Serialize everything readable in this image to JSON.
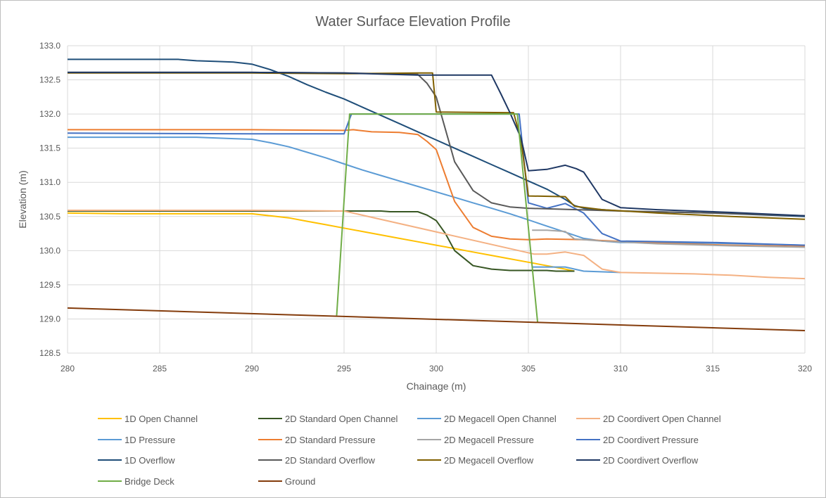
{
  "chart_data": {
    "type": "line",
    "title": "Water Surface Elevation Profile",
    "xlabel": "Chainage (m)",
    "ylabel": "Elevation (m)",
    "xlim": [
      280,
      320
    ],
    "ylim": [
      128.5,
      133.0
    ],
    "x_ticks": [
      280,
      285,
      290,
      295,
      300,
      305,
      310,
      315,
      320
    ],
    "y_ticks": [
      128.5,
      129.0,
      129.5,
      130.0,
      130.5,
      131.0,
      131.5,
      132.0,
      132.5,
      133.0
    ],
    "x_tick_labels": [
      "280",
      "285",
      "290",
      "295",
      "300",
      "305",
      "310",
      "315",
      "320"
    ],
    "y_tick_labels": [
      "128.5",
      "129.0",
      "129.5",
      "130.0",
      "130.5",
      "131.0",
      "131.5",
      "132.0",
      "132.5",
      "133.0"
    ],
    "grid": true,
    "legend_position": "bottom",
    "series": [
      {
        "name": "1D Open Channel",
        "color": "#FFC000",
        "points": [
          [
            280,
            130.55
          ],
          [
            283,
            130.54
          ],
          [
            290,
            130.54
          ],
          [
            291,
            130.51
          ],
          [
            292,
            130.48
          ],
          [
            293,
            130.43
          ],
          [
            294,
            130.38
          ],
          [
            295,
            130.33
          ],
          [
            296,
            130.28
          ],
          [
            297,
            130.23
          ],
          [
            298,
            130.18
          ],
          [
            299,
            130.13
          ],
          [
            300,
            130.08
          ],
          [
            301,
            130.03
          ],
          [
            302,
            129.98
          ],
          [
            303,
            129.93
          ],
          [
            304,
            129.88
          ],
          [
            305,
            129.83
          ],
          [
            306,
            129.78
          ],
          [
            307,
            129.73
          ],
          [
            307.5,
            129.7
          ]
        ]
      },
      {
        "name": "2D Standard Open Channel",
        "color": "#375623",
        "points": [
          [
            280,
            130.58
          ],
          [
            295,
            130.58
          ],
          [
            297,
            130.58
          ],
          [
            297.5,
            130.57
          ],
          [
            299,
            130.57
          ],
          [
            299.5,
            130.52
          ],
          [
            300,
            130.44
          ],
          [
            300.5,
            130.25
          ],
          [
            301,
            130.0
          ],
          [
            302,
            129.78
          ],
          [
            303,
            129.73
          ],
          [
            304,
            129.71
          ],
          [
            306,
            129.71
          ],
          [
            306.5,
            129.7
          ],
          [
            307.5,
            129.7
          ]
        ]
      },
      {
        "name": "2D Megacell Open Channel",
        "color": "#5B9BD5",
        "points": [
          [
            305.2,
            129.76
          ],
          [
            307,
            129.76
          ],
          [
            308,
            129.7
          ],
          [
            310,
            129.68
          ]
        ]
      },
      {
        "name": "2D Coordivert Open Channel",
        "color": "#F4B183",
        "points": [
          [
            280,
            130.59
          ],
          [
            290,
            130.59
          ],
          [
            295,
            130.58
          ],
          [
            305.3,
            129.95
          ],
          [
            306,
            129.95
          ],
          [
            307,
            129.98
          ],
          [
            308,
            129.93
          ],
          [
            309,
            129.73
          ],
          [
            310,
            129.68
          ],
          [
            312,
            129.67
          ],
          [
            314,
            129.66
          ],
          [
            316,
            129.64
          ],
          [
            318,
            129.61
          ],
          [
            320,
            129.59
          ]
        ]
      },
      {
        "name": "1D Pressure",
        "color": "#5B9BD5",
        "points": [
          [
            280,
            131.66
          ],
          [
            287,
            131.66
          ],
          [
            289,
            131.64
          ],
          [
            290,
            131.63
          ],
          [
            291,
            131.58
          ],
          [
            292,
            131.52
          ],
          [
            293,
            131.44
          ],
          [
            294,
            131.36
          ],
          [
            295,
            131.27
          ],
          [
            296,
            131.18
          ],
          [
            297,
            131.1
          ],
          [
            298,
            131.02
          ],
          [
            299,
            130.94
          ],
          [
            300,
            130.86
          ],
          [
            301,
            130.78
          ],
          [
            302,
            130.7
          ],
          [
            303,
            130.62
          ],
          [
            304,
            130.54
          ],
          [
            305,
            130.45
          ],
          [
            306,
            130.36
          ],
          [
            307,
            130.27
          ],
          [
            308,
            130.18
          ],
          [
            309,
            130.14
          ],
          [
            310,
            130.12
          ],
          [
            315,
            130.11
          ],
          [
            320,
            130.08
          ]
        ]
      },
      {
        "name": "2D Standard Pressure",
        "color": "#ED7D31",
        "points": [
          [
            280,
            131.77
          ],
          [
            290,
            131.77
          ],
          [
            295,
            131.76
          ],
          [
            295.5,
            131.77
          ],
          [
            296.5,
            131.74
          ],
          [
            298,
            131.73
          ],
          [
            299,
            131.7
          ],
          [
            299.5,
            131.6
          ],
          [
            300,
            131.48
          ],
          [
            300.5,
            131.1
          ],
          [
            301,
            130.72
          ],
          [
            302,
            130.34
          ],
          [
            303,
            130.21
          ],
          [
            304,
            130.17
          ],
          [
            305,
            130.16
          ],
          [
            306,
            130.17
          ],
          [
            308,
            130.16
          ],
          [
            312,
            130.11
          ],
          [
            316,
            130.08
          ],
          [
            320,
            130.06
          ]
        ]
      },
      {
        "name": "2D Megacell Pressure",
        "color": "#A5A5A5",
        "points": [
          [
            305.2,
            130.3
          ],
          [
            306,
            130.3
          ],
          [
            307,
            130.28
          ],
          [
            307.5,
            130.17
          ],
          [
            309,
            130.14
          ],
          [
            312,
            130.1
          ],
          [
            316,
            130.07
          ],
          [
            320,
            130.05
          ]
        ]
      },
      {
        "name": "2D Coordivert Pressure",
        "color": "#4472C4",
        "points": [
          [
            280,
            131.72
          ],
          [
            290,
            131.71
          ],
          [
            295,
            131.71
          ],
          [
            295.4,
            132.0
          ],
          [
            304.5,
            132.0
          ],
          [
            305,
            130.7
          ],
          [
            306,
            130.62
          ],
          [
            307,
            130.69
          ],
          [
            308,
            130.55
          ],
          [
            309,
            130.25
          ],
          [
            310,
            130.14
          ],
          [
            315,
            130.12
          ],
          [
            320,
            130.08
          ]
        ]
      },
      {
        "name": "1D Overflow",
        "color": "#1F4E79",
        "points": [
          [
            280,
            132.8
          ],
          [
            286,
            132.8
          ],
          [
            287,
            132.78
          ],
          [
            288,
            132.77
          ],
          [
            289,
            132.76
          ],
          [
            290,
            132.73
          ],
          [
            291,
            132.65
          ],
          [
            292,
            132.55
          ],
          [
            293,
            132.43
          ],
          [
            294,
            132.32
          ],
          [
            295,
            132.22
          ],
          [
            296,
            132.1
          ],
          [
            297,
            131.98
          ],
          [
            298,
            131.86
          ],
          [
            299,
            131.74
          ],
          [
            300,
            131.62
          ],
          [
            301,
            131.5
          ],
          [
            302,
            131.38
          ],
          [
            303,
            131.26
          ],
          [
            304,
            131.14
          ],
          [
            305,
            131.02
          ],
          [
            306,
            130.9
          ],
          [
            307,
            130.75
          ],
          [
            307.5,
            130.66
          ],
          [
            308,
            130.62
          ],
          [
            310,
            130.58
          ],
          [
            315,
            130.55
          ],
          [
            320,
            130.5
          ]
        ]
      },
      {
        "name": "2D Standard Overflow",
        "color": "#595959",
        "points": [
          [
            280,
            132.61
          ],
          [
            290,
            132.61
          ],
          [
            295,
            132.6
          ],
          [
            299,
            132.58
          ],
          [
            299.5,
            132.45
          ],
          [
            300,
            132.25
          ],
          [
            301,
            131.3
          ],
          [
            302,
            130.88
          ],
          [
            303,
            130.7
          ],
          [
            304,
            130.64
          ],
          [
            305,
            130.62
          ],
          [
            310,
            130.58
          ],
          [
            315,
            130.55
          ],
          [
            320,
            130.51
          ]
        ]
      },
      {
        "name": "2D Megacell Overflow",
        "color": "#806000",
        "points": [
          [
            280,
            132.6
          ],
          [
            290,
            132.6
          ],
          [
            295,
            132.59
          ],
          [
            299,
            132.6
          ],
          [
            299.8,
            132.6
          ],
          [
            300,
            132.03
          ],
          [
            304.2,
            132.02
          ],
          [
            304.6,
            131.62
          ],
          [
            305,
            130.8
          ],
          [
            307,
            130.79
          ],
          [
            307.5,
            130.65
          ],
          [
            309,
            130.6
          ],
          [
            312,
            130.55
          ],
          [
            316,
            130.5
          ],
          [
            318,
            130.48
          ],
          [
            320,
            130.46
          ]
        ]
      },
      {
        "name": "2D Coordivert Overflow",
        "color": "#1F3864",
        "points": [
          [
            280,
            132.61
          ],
          [
            290,
            132.61
          ],
          [
            295,
            132.6
          ],
          [
            299,
            132.57
          ],
          [
            303,
            132.57
          ],
          [
            303.5,
            132.3
          ],
          [
            304,
            132.02
          ],
          [
            304.6,
            131.65
          ],
          [
            305,
            131.17
          ],
          [
            306,
            131.19
          ],
          [
            307,
            131.25
          ],
          [
            307.6,
            131.2
          ],
          [
            308,
            131.15
          ],
          [
            309,
            130.75
          ],
          [
            310,
            130.63
          ],
          [
            312,
            130.6
          ],
          [
            316,
            130.56
          ],
          [
            320,
            130.51
          ]
        ]
      },
      {
        "name": "Bridge Deck",
        "color": "#70AD47",
        "points": [
          [
            294.6,
            129.05
          ],
          [
            295.3,
            132.0
          ],
          [
            304.4,
            132.0
          ],
          [
            305.5,
            128.95
          ]
        ]
      },
      {
        "name": "Ground",
        "color": "#843C0C",
        "points": [
          [
            280,
            129.16
          ],
          [
            320,
            128.83
          ]
        ]
      }
    ]
  }
}
